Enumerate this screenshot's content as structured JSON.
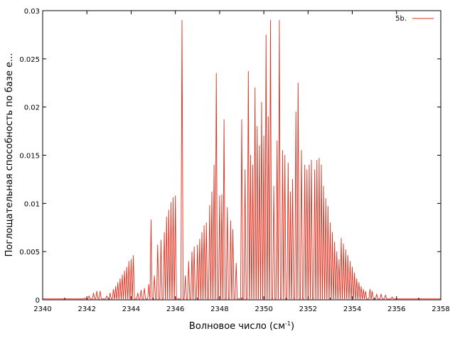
{
  "chart_data": {
    "type": "line",
    "xlabel_main": "Волновое число (см",
    "xlabel_sup": "-1",
    "xlabel_close": ")",
    "ylabel": "Поглощательная способность по базе е...",
    "xlim": [
      2340,
      2358
    ],
    "ylim": [
      0,
      0.03
    ],
    "x_ticks": [
      2340,
      2342,
      2344,
      2346,
      2348,
      2350,
      2352,
      2354,
      2356,
      2358
    ],
    "x_tick_labels": [
      "2340",
      "2342",
      "2344",
      "2346",
      "2348",
      "2350",
      "2352",
      "2354",
      "2356",
      "2358"
    ],
    "y_ticks": [
      0,
      0.005,
      0.01,
      0.015,
      0.02,
      0.025,
      0.03
    ],
    "y_tick_labels": [
      "0",
      "0.005",
      "0.01",
      "0.015",
      "0.02",
      "0.025",
      "0.03"
    ],
    "grid": false,
    "legend_position": "top-right",
    "series": [
      {
        "name": "5b.",
        "color": "#e0301e",
        "baseline": 0.0001,
        "peaks": [
          [
            2341.9,
            0.0002
          ],
          [
            2342.1,
            0.0004
          ],
          [
            2342.3,
            0.0007
          ],
          [
            2342.45,
            0.0009
          ],
          [
            2342.6,
            0.0009
          ],
          [
            2342.9,
            0.0004
          ],
          [
            2343.05,
            0.0007
          ],
          [
            2343.2,
            0.0011
          ],
          [
            2343.3,
            0.0014
          ],
          [
            2343.4,
            0.0018
          ],
          [
            2343.5,
            0.0022
          ],
          [
            2343.6,
            0.0026
          ],
          [
            2343.7,
            0.003
          ],
          [
            2343.8,
            0.0034
          ],
          [
            2343.9,
            0.004
          ],
          [
            2344.0,
            0.0042
          ],
          [
            2344.1,
            0.0046
          ],
          [
            2344.3,
            0.0007
          ],
          [
            2344.45,
            0.001
          ],
          [
            2344.6,
            0.0012
          ],
          [
            2344.8,
            0.0016
          ],
          [
            2344.9,
            0.0083
          ],
          [
            2345.05,
            0.0025
          ],
          [
            2345.2,
            0.0057
          ],
          [
            2345.35,
            0.0062
          ],
          [
            2345.5,
            0.007
          ],
          [
            2345.6,
            0.0086
          ],
          [
            2345.7,
            0.0093
          ],
          [
            2345.8,
            0.0101
          ],
          [
            2345.9,
            0.0106
          ],
          [
            2346.0,
            0.0108
          ],
          [
            2346.3,
            0.029
          ],
          [
            2346.45,
            0.0025
          ],
          [
            2346.6,
            0.004
          ],
          [
            2346.75,
            0.005
          ],
          [
            2346.85,
            0.0055
          ],
          [
            2347.0,
            0.0057
          ],
          [
            2347.1,
            0.0063
          ],
          [
            2347.2,
            0.007
          ],
          [
            2347.3,
            0.0077
          ],
          [
            2347.4,
            0.008
          ],
          [
            2347.55,
            0.0098
          ],
          [
            2347.65,
            0.0112
          ],
          [
            2347.75,
            0.014
          ],
          [
            2347.85,
            0.0235
          ],
          [
            2348.0,
            0.0108
          ],
          [
            2348.1,
            0.0109
          ],
          [
            2348.2,
            0.0187
          ],
          [
            2348.35,
            0.0096
          ],
          [
            2348.5,
            0.0082
          ],
          [
            2348.6,
            0.0073
          ],
          [
            2348.75,
            0.0038
          ],
          [
            2349.0,
            0.0187
          ],
          [
            2349.15,
            0.0135
          ],
          [
            2349.3,
            0.0237
          ],
          [
            2349.4,
            0.015
          ],
          [
            2349.5,
            0.014
          ],
          [
            2349.6,
            0.022
          ],
          [
            2349.7,
            0.018
          ],
          [
            2349.8,
            0.016
          ],
          [
            2349.9,
            0.0205
          ],
          [
            2350.0,
            0.017
          ],
          [
            2350.1,
            0.0275
          ],
          [
            2350.2,
            0.019
          ],
          [
            2350.3,
            0.029
          ],
          [
            2350.45,
            0.0118
          ],
          [
            2350.6,
            0.0165
          ],
          [
            2350.7,
            0.029
          ],
          [
            2350.85,
            0.0155
          ],
          [
            2350.95,
            0.015
          ],
          [
            2351.1,
            0.0142
          ],
          [
            2351.2,
            0.0112
          ],
          [
            2351.3,
            0.0125
          ],
          [
            2351.45,
            0.0195
          ],
          [
            2351.55,
            0.0225
          ],
          [
            2351.7,
            0.0155
          ],
          [
            2351.85,
            0.014
          ],
          [
            2351.95,
            0.0135
          ],
          [
            2352.05,
            0.014
          ],
          [
            2352.15,
            0.0145
          ],
          [
            2352.3,
            0.0135
          ],
          [
            2352.4,
            0.0145
          ],
          [
            2352.5,
            0.0147
          ],
          [
            2352.6,
            0.014
          ],
          [
            2352.7,
            0.0118
          ],
          [
            2352.8,
            0.0105
          ],
          [
            2352.9,
            0.0097
          ],
          [
            2353.0,
            0.008
          ],
          [
            2353.1,
            0.007
          ],
          [
            2353.2,
            0.006
          ],
          [
            2353.3,
            0.005
          ],
          [
            2353.4,
            0.0042
          ],
          [
            2353.5,
            0.0064
          ],
          [
            2353.6,
            0.0058
          ],
          [
            2353.7,
            0.0052
          ],
          [
            2353.8,
            0.0046
          ],
          [
            2353.9,
            0.004
          ],
          [
            2354.0,
            0.0034
          ],
          [
            2354.1,
            0.0028
          ],
          [
            2354.2,
            0.0022
          ],
          [
            2354.3,
            0.0018
          ],
          [
            2354.4,
            0.0014
          ],
          [
            2354.5,
            0.0011
          ],
          [
            2354.6,
            0.0009
          ],
          [
            2354.8,
            0.0011
          ],
          [
            2354.9,
            0.0009
          ],
          [
            2355.1,
            0.0006
          ],
          [
            2355.3,
            0.0006
          ],
          [
            2355.5,
            0.0005
          ],
          [
            2355.8,
            0.0003
          ]
        ]
      }
    ]
  }
}
